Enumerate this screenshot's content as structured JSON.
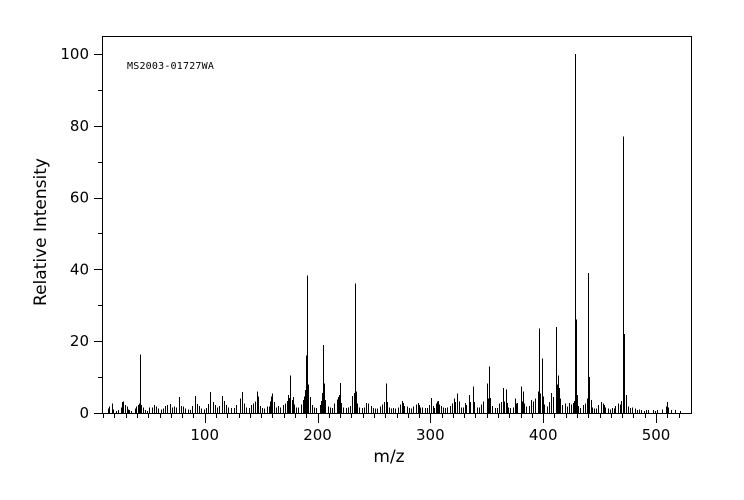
{
  "figure": {
    "background": "#ffffff",
    "frame_color": "#000000",
    "bar_color": "#000000",
    "annotation": "MS2003-01727WA"
  },
  "chart_data": {
    "type": "bar",
    "subtype": "mass-spectrum",
    "title": "",
    "xlabel": "m/z",
    "ylabel": "Relative Intensity",
    "annotation": "MS2003-01727WA",
    "xlim": [
      9,
      531
    ],
    "ylim": [
      0,
      105
    ],
    "x_major_ticks": [
      100,
      200,
      300,
      400,
      500
    ],
    "x_minor_step": 10,
    "x_minor_range": [
      10,
      520
    ],
    "y_major_ticks": [
      0,
      20,
      40,
      60,
      80,
      100
    ],
    "y_minor_ticks": [
      10,
      30,
      50,
      70,
      90
    ],
    "grid": false,
    "legend": false,
    "base_peak": {
      "mz": 428,
      "intensity": 100
    },
    "peaks": [
      [
        14,
        1.2
      ],
      [
        15,
        1.8
      ],
      [
        18,
        2.6
      ],
      [
        19,
        1.0
      ],
      [
        21,
        0.6
      ],
      [
        23,
        0.8
      ],
      [
        26,
        1.5
      ],
      [
        27,
        3.0
      ],
      [
        28,
        3.2
      ],
      [
        29,
        2.2
      ],
      [
        31,
        1.8
      ],
      [
        32,
        1.0
      ],
      [
        33,
        0.8
      ],
      [
        35,
        0.6
      ],
      [
        38,
        1.2
      ],
      [
        39,
        1.8
      ],
      [
        41,
        2.2
      ],
      [
        42,
        2.6
      ],
      [
        43,
        16.3
      ],
      [
        44,
        2.2
      ],
      [
        45,
        1.5
      ],
      [
        47,
        0.8
      ],
      [
        49,
        0.6
      ],
      [
        51,
        1.5
      ],
      [
        53,
        1.5
      ],
      [
        55,
        2.2
      ],
      [
        57,
        1.8
      ],
      [
        59,
        1.2
      ],
      [
        61,
        1.0
      ],
      [
        63,
        1.2
      ],
      [
        65,
        2.0
      ],
      [
        67,
        2.2
      ],
      [
        69,
        2.5
      ],
      [
        71,
        1.5
      ],
      [
        73,
        1.8
      ],
      [
        75,
        1.5
      ],
      [
        77,
        4.5
      ],
      [
        79,
        2.0
      ],
      [
        81,
        1.8
      ],
      [
        83,
        1.2
      ],
      [
        85,
        1.0
      ],
      [
        87,
        0.8
      ],
      [
        89,
        2.0
      ],
      [
        91,
        4.8
      ],
      [
        93,
        2.5
      ],
      [
        95,
        2.0
      ],
      [
        97,
        1.2
      ],
      [
        99,
        1.0
      ],
      [
        101,
        1.4
      ],
      [
        103,
        2.5
      ],
      [
        105,
        5.8
      ],
      [
        107,
        3.0
      ],
      [
        109,
        2.2
      ],
      [
        111,
        1.6
      ],
      [
        113,
        2.0
      ],
      [
        115,
        4.7
      ],
      [
        117,
        3.4
      ],
      [
        119,
        2.2
      ],
      [
        121,
        1.6
      ],
      [
        123,
        1.4
      ],
      [
        126,
        1.4
      ],
      [
        128,
        2.2
      ],
      [
        131,
        4.0
      ],
      [
        133,
        5.8
      ],
      [
        135,
        2.6
      ],
      [
        137,
        1.6
      ],
      [
        139,
        1.4
      ],
      [
        141,
        2.2
      ],
      [
        143,
        2.6
      ],
      [
        145,
        3.2
      ],
      [
        146,
        6.0
      ],
      [
        147,
        4.6
      ],
      [
        149,
        2.0
      ],
      [
        151,
        1.4
      ],
      [
        153,
        1.2
      ],
      [
        155,
        1.8
      ],
      [
        157,
        1.8
      ],
      [
        158,
        3.2
      ],
      [
        159,
        4.6
      ],
      [
        160,
        5.4
      ],
      [
        161,
        3.0
      ],
      [
        163,
        1.6
      ],
      [
        165,
        2.0
      ],
      [
        167,
        1.6
      ],
      [
        169,
        2.2
      ],
      [
        171,
        2.6
      ],
      [
        173,
        3.4
      ],
      [
        174,
        5.0
      ],
      [
        175,
        4.2
      ],
      [
        176,
        10.4
      ],
      [
        177,
        3.6
      ],
      [
        178,
        4.4
      ],
      [
        179,
        2.4
      ],
      [
        181,
        1.6
      ],
      [
        183,
        1.6
      ],
      [
        185,
        2.4
      ],
      [
        187,
        3.6
      ],
      [
        188,
        4.6
      ],
      [
        189,
        6.4
      ],
      [
        190,
        16.0
      ],
      [
        191,
        38.3
      ],
      [
        192,
        8.0
      ],
      [
        193,
        4.4
      ],
      [
        195,
        2.2
      ],
      [
        197,
        1.6
      ],
      [
        199,
        1.4
      ],
      [
        202,
        2.2
      ],
      [
        203,
        3.4
      ],
      [
        204,
        5.6
      ],
      [
        205,
        18.9
      ],
      [
        206,
        8.2
      ],
      [
        207,
        3.6
      ],
      [
        209,
        1.8
      ],
      [
        211,
        1.6
      ],
      [
        213,
        1.4
      ],
      [
        215,
        2.6
      ],
      [
        217,
        3.8
      ],
      [
        218,
        4.4
      ],
      [
        219,
        5.0
      ],
      [
        220,
        8.3
      ],
      [
        221,
        2.8
      ],
      [
        223,
        1.6
      ],
      [
        225,
        1.4
      ],
      [
        227,
        1.6
      ],
      [
        229,
        2.0
      ],
      [
        231,
        4.8
      ],
      [
        232,
        5.6
      ],
      [
        233,
        36.0
      ],
      [
        234,
        6.0
      ],
      [
        235,
        2.6
      ],
      [
        237,
        1.6
      ],
      [
        239,
        1.4
      ],
      [
        241,
        1.6
      ],
      [
        243,
        2.8
      ],
      [
        245,
        2.6
      ],
      [
        247,
        2.0
      ],
      [
        249,
        1.4
      ],
      [
        251,
        1.2
      ],
      [
        253,
        1.2
      ],
      [
        255,
        1.8
      ],
      [
        257,
        2.4
      ],
      [
        259,
        3.0
      ],
      [
        261,
        8.2
      ],
      [
        262,
        3.0
      ],
      [
        263,
        1.6
      ],
      [
        265,
        1.2
      ],
      [
        267,
        1.4
      ],
      [
        269,
        1.2
      ],
      [
        271,
        1.6
      ],
      [
        273,
        2.4
      ],
      [
        275,
        3.4
      ],
      [
        276,
        2.8
      ],
      [
        277,
        2.0
      ],
      [
        279,
        1.8
      ],
      [
        281,
        1.4
      ],
      [
        283,
        1.2
      ],
      [
        285,
        1.8
      ],
      [
        287,
        2.4
      ],
      [
        289,
        2.8
      ],
      [
        290,
        2.2
      ],
      [
        291,
        1.6
      ],
      [
        293,
        1.6
      ],
      [
        295,
        1.4
      ],
      [
        297,
        1.4
      ],
      [
        299,
        2.2
      ],
      [
        301,
        4.2
      ],
      [
        302,
        2.0
      ],
      [
        303,
        1.4
      ],
      [
        305,
        2.6
      ],
      [
        306,
        3.2
      ],
      [
        307,
        3.4
      ],
      [
        308,
        2.4
      ],
      [
        309,
        2.0
      ],
      [
        311,
        1.6
      ],
      [
        313,
        1.4
      ],
      [
        315,
        1.6
      ],
      [
        317,
        2.0
      ],
      [
        319,
        2.6
      ],
      [
        321,
        4.0
      ],
      [
        322,
        3.0
      ],
      [
        324,
        5.4
      ],
      [
        325,
        3.2
      ],
      [
        327,
        1.6
      ],
      [
        329,
        1.6
      ],
      [
        331,
        2.8
      ],
      [
        332,
        2.2
      ],
      [
        334,
        5.0
      ],
      [
        335,
        3.0
      ],
      [
        338,
        7.4
      ],
      [
        339,
        3.0
      ],
      [
        341,
        1.6
      ],
      [
        343,
        1.6
      ],
      [
        345,
        2.4
      ],
      [
        347,
        3.2
      ],
      [
        350,
        8.2
      ],
      [
        351,
        4.0
      ],
      [
        352,
        13.0
      ],
      [
        353,
        4.2
      ],
      [
        355,
        2.0
      ],
      [
        357,
        1.4
      ],
      [
        359,
        1.4
      ],
      [
        361,
        2.6
      ],
      [
        363,
        3.0
      ],
      [
        364,
        7.0
      ],
      [
        365,
        3.2
      ],
      [
        367,
        6.6
      ],
      [
        368,
        2.8
      ],
      [
        369,
        1.6
      ],
      [
        371,
        1.4
      ],
      [
        373,
        1.6
      ],
      [
        375,
        4.0
      ],
      [
        376,
        2.6
      ],
      [
        377,
        2.8
      ],
      [
        380,
        7.4
      ],
      [
        381,
        3.2
      ],
      [
        382,
        6.0
      ],
      [
        383,
        2.6
      ],
      [
        385,
        1.8
      ],
      [
        387,
        2.0
      ],
      [
        389,
        3.6
      ],
      [
        391,
        3.2
      ],
      [
        393,
        4.0
      ],
      [
        395,
        6.0
      ],
      [
        396,
        23.5
      ],
      [
        397,
        5.5
      ],
      [
        399,
        15.2
      ],
      [
        400,
        4.6
      ],
      [
        401,
        2.4
      ],
      [
        403,
        1.8
      ],
      [
        405,
        3.0
      ],
      [
        407,
        5.6
      ],
      [
        409,
        4.5
      ],
      [
        411,
        24.0
      ],
      [
        412,
        8.0
      ],
      [
        413,
        10.4
      ],
      [
        414,
        7.0
      ],
      [
        415,
        4.0
      ],
      [
        417,
        2.2
      ],
      [
        419,
        2.6
      ],
      [
        421,
        1.8
      ],
      [
        423,
        2.8
      ],
      [
        425,
        2.4
      ],
      [
        426,
        2.8
      ],
      [
        427,
        3.4
      ],
      [
        428,
        100.0
      ],
      [
        429,
        26.0
      ],
      [
        430,
        5.0
      ],
      [
        431,
        2.0
      ],
      [
        433,
        1.4
      ],
      [
        435,
        2.2
      ],
      [
        437,
        2.6
      ],
      [
        439,
        4.0
      ],
      [
        440,
        39.0
      ],
      [
        441,
        10.0
      ],
      [
        442,
        3.6
      ],
      [
        443,
        1.6
      ],
      [
        445,
        1.2
      ],
      [
        447,
        1.2
      ],
      [
        449,
        2.2
      ],
      [
        451,
        3.0
      ],
      [
        453,
        2.6
      ],
      [
        454,
        2.2
      ],
      [
        455,
        1.6
      ],
      [
        457,
        1.2
      ],
      [
        459,
        1.0
      ],
      [
        461,
        1.4
      ],
      [
        463,
        1.2
      ],
      [
        464,
        2.0
      ],
      [
        466,
        2.6
      ],
      [
        468,
        2.4
      ],
      [
        469,
        3.4
      ],
      [
        471,
        77.0
      ],
      [
        472,
        22.0
      ],
      [
        473,
        5.0
      ],
      [
        475,
        1.8
      ],
      [
        477,
        1.4
      ],
      [
        479,
        1.6
      ],
      [
        481,
        1.2
      ],
      [
        483,
        0.8
      ],
      [
        485,
        1.0
      ],
      [
        487,
        0.8
      ],
      [
        489,
        0.6
      ],
      [
        491,
        0.8
      ],
      [
        493,
        0.8
      ],
      [
        497,
        0.8
      ],
      [
        499,
        0.6
      ],
      [
        501,
        0.8
      ],
      [
        505,
        1.0
      ],
      [
        509,
        1.8
      ],
      [
        510,
        3.0
      ],
      [
        511,
        1.6
      ],
      [
        513,
        0.8
      ],
      [
        517,
        0.8
      ],
      [
        521,
        0.6
      ]
    ]
  }
}
